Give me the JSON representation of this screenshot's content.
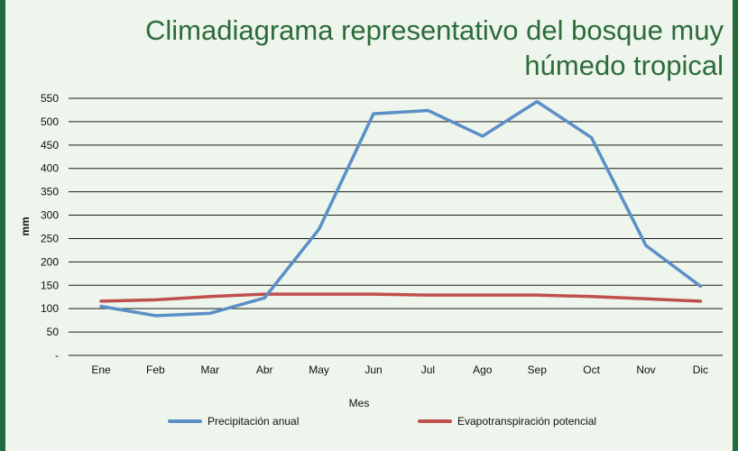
{
  "colors": {
    "frame": "#236b3c",
    "panel": "#eef5ec",
    "title": "#2c6b3a",
    "precip": "#5b8fc7",
    "evapo": "#c0504d"
  },
  "chart_data": {
    "type": "line",
    "title": [
      "Climadiagrama representativo del bosque muy",
      "húmedo tropical"
    ],
    "xlabel": "Mes",
    "ylabel": "mm",
    "categories": [
      "Ene",
      "Feb",
      "Mar",
      "Abr",
      "May",
      "Jun",
      "Jul",
      "Ago",
      "Sep",
      "Oct",
      "Nov",
      "Dic"
    ],
    "yticks": [
      0,
      50,
      100,
      150,
      200,
      250,
      300,
      350,
      400,
      450,
      500,
      550
    ],
    "ytick_labels": [
      "-",
      "50",
      "100",
      "150",
      "200",
      "250",
      "300",
      "350",
      "400",
      "450",
      "500",
      "550"
    ],
    "ylim": [
      0,
      550
    ],
    "grid": true,
    "legend_position": "bottom",
    "series": [
      {
        "name": "Precipitación anual",
        "color": "#5b8fc7",
        "values": [
          105,
          85,
          90,
          123,
          270,
          517,
          524,
          469,
          543,
          466,
          235,
          148
        ]
      },
      {
        "name": "Evapotranspiración potencial",
        "color": "#c0504d",
        "values": [
          116,
          119,
          126,
          131,
          131,
          131,
          129,
          129,
          129,
          126,
          121,
          116
        ]
      }
    ]
  }
}
